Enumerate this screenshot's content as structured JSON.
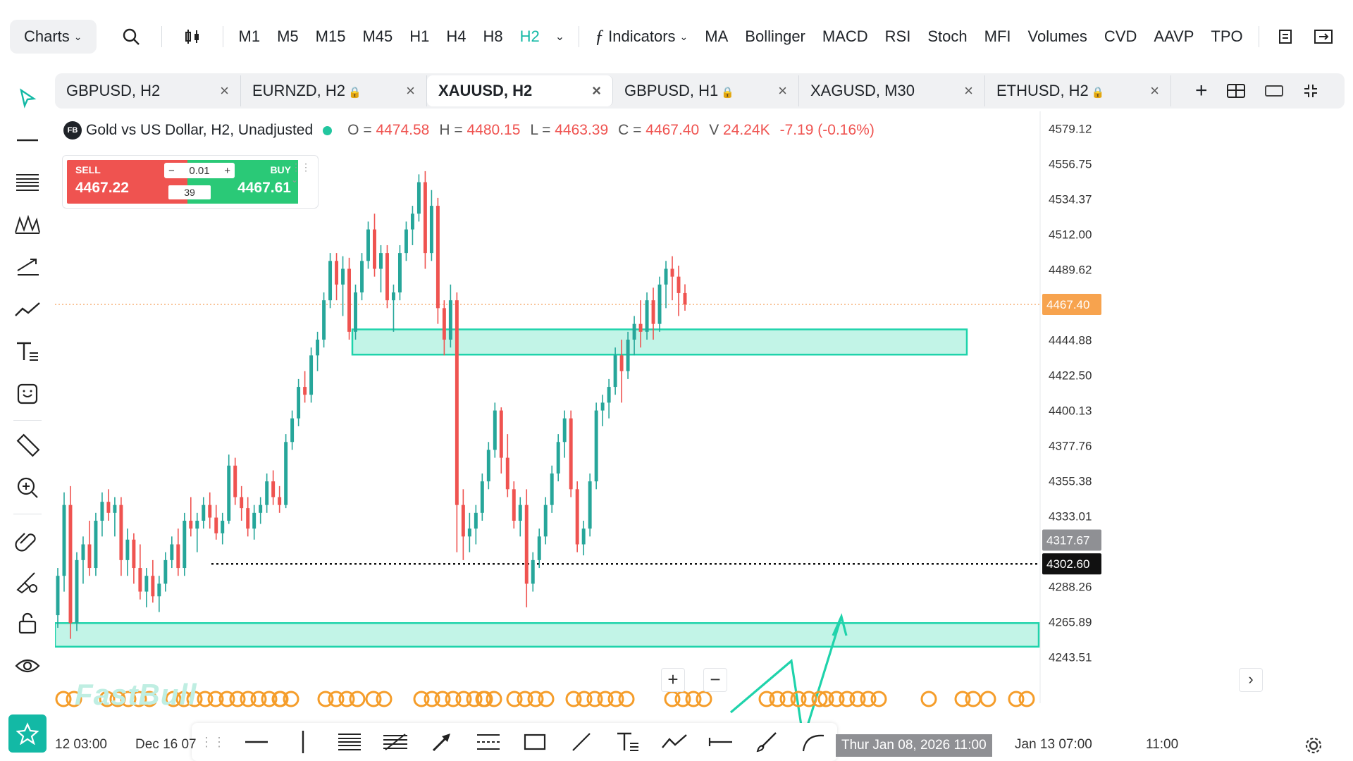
{
  "toolbar": {
    "charts_label": "Charts",
    "timeframes": [
      "M1",
      "M5",
      "M15",
      "M45",
      "H1",
      "H4",
      "H8",
      "H2"
    ],
    "active_timeframe": "H2",
    "indicators_label": "Indicators",
    "indicator_items": [
      "MA",
      "Bollinger",
      "MACD",
      "RSI",
      "Stoch",
      "MFI",
      "Volumes",
      "CVD",
      "AAVP",
      "TPO"
    ]
  },
  "tabs": [
    {
      "label": "GBPUSD, H2",
      "locked": false,
      "active": false
    },
    {
      "label": "EURNZD, H2",
      "locked": true,
      "active": false
    },
    {
      "label": "XAUUSD, H2",
      "locked": false,
      "active": true
    },
    {
      "label": "GBPUSD, H1",
      "locked": true,
      "active": false
    },
    {
      "label": "XAGUSD, M30",
      "locked": false,
      "active": false
    },
    {
      "label": "ETHUSD, H2",
      "locked": true,
      "active": false
    }
  ],
  "legend": {
    "badge": "FB",
    "title": "Gold vs US Dollar, H2, Unadjusted",
    "o_label": "O =",
    "o": "4474.58",
    "h_label": "H =",
    "h": "4480.15",
    "l_label": "L =",
    "l": "4463.39",
    "c_label": "C =",
    "c": "4467.40",
    "v_label": "V",
    "v": "24.24K",
    "change": "-7.19 (-0.16%)"
  },
  "trade": {
    "sell_label": "SELL",
    "sell_price": "4467.22",
    "buy_label": "BUY",
    "buy_price": "4467.61",
    "lot": "0.01",
    "spread": "39",
    "minus": "−",
    "plus": "+"
  },
  "price_axis": [
    "4579.12",
    "4556.75",
    "4534.37",
    "4512.00",
    "4489.62",
    "4467.40",
    "4444.88",
    "4422.50",
    "4400.13",
    "4377.76",
    "4355.38",
    "4333.01",
    "4317.67",
    "4302.60",
    "4288.26",
    "4265.89",
    "4243.51"
  ],
  "price_tags": {
    "last": "4467.40",
    "crosshair_a": "4317.67",
    "crosshair_b": "4302.60"
  },
  "time_axis": {
    "labels": [
      "12 03:00",
      "Dec 16 07",
      "Jan 13 07:00",
      "11:00"
    ],
    "crosshair": "Thur Jan 08, 2026 11:00"
  },
  "watermark": "FastBull",
  "colors": {
    "up": "#26a69a",
    "down": "#ef5350",
    "accent": "#13b9a5",
    "zone_fill": "#b7f2e3",
    "zone_stroke": "#1fd3ab"
  },
  "chart_data": {
    "type": "candlestick",
    "symbol": "XAUUSD",
    "timeframe": "H2",
    "ylim": [
      4232,
      4590
    ],
    "last_price": 4467.4,
    "zones": [
      [
        4435.5,
        4451.5
      ],
      [
        4250,
        4265.0
      ]
    ],
    "support_line": 4302.6,
    "candles": [
      [
        4270,
        4300,
        4262,
        4295
      ],
      [
        4295,
        4348,
        4285,
        4340
      ],
      [
        4340,
        4352,
        4255,
        4265
      ],
      [
        4265,
        4310,
        4260,
        4305
      ],
      [
        4305,
        4320,
        4290,
        4315
      ],
      [
        4315,
        4330,
        4295,
        4300
      ],
      [
        4300,
        4335,
        4295,
        4330
      ],
      [
        4330,
        4348,
        4320,
        4342
      ],
      [
        4342,
        4350,
        4330,
        4335
      ],
      [
        4335,
        4345,
        4320,
        4340
      ],
      [
        4340,
        4345,
        4295,
        4305
      ],
      [
        4305,
        4325,
        4295,
        4318
      ],
      [
        4318,
        4322,
        4290,
        4300
      ],
      [
        4300,
        4315,
        4280,
        4285
      ],
      [
        4285,
        4300,
        4275,
        4295
      ],
      [
        4295,
        4305,
        4278,
        4282
      ],
      [
        4282,
        4295,
        4272,
        4290
      ],
      [
        4290,
        4310,
        4285,
        4305
      ],
      [
        4305,
        4320,
        4300,
        4315
      ],
      [
        4315,
        4325,
        4295,
        4300
      ],
      [
        4300,
        4335,
        4295,
        4330
      ],
      [
        4330,
        4345,
        4320,
        4325
      ],
      [
        4325,
        4335,
        4310,
        4330
      ],
      [
        4330,
        4345,
        4325,
        4340
      ],
      [
        4340,
        4348,
        4325,
        4332
      ],
      [
        4332,
        4340,
        4318,
        4322
      ],
      [
        4322,
        4335,
        4315,
        4330
      ],
      [
        4330,
        4372,
        4328,
        4365
      ],
      [
        4365,
        4370,
        4340,
        4345
      ],
      [
        4345,
        4352,
        4330,
        4338
      ],
      [
        4338,
        4345,
        4320,
        4325
      ],
      [
        4325,
        4340,
        4318,
        4335
      ],
      [
        4335,
        4345,
        4328,
        4340
      ],
      [
        4340,
        4360,
        4335,
        4355
      ],
      [
        4355,
        4362,
        4340,
        4345
      ],
      [
        4345,
        4352,
        4335,
        4340
      ],
      [
        4340,
        4385,
        4338,
        4380
      ],
      [
        4380,
        4400,
        4375,
        4395
      ],
      [
        4395,
        4420,
        4390,
        4415
      ],
      [
        4415,
        4425,
        4405,
        4410
      ],
      [
        4410,
        4440,
        4405,
        4435
      ],
      [
        4435,
        4450,
        4425,
        4445
      ],
      [
        4445,
        4475,
        4440,
        4470
      ],
      [
        4470,
        4500,
        4465,
        4495
      ],
      [
        4495,
        4500,
        4470,
        4480
      ],
      [
        4480,
        4498,
        4460,
        4490
      ],
      [
        4490,
        4497,
        4445,
        4450
      ],
      [
        4450,
        4480,
        4445,
        4475
      ],
      [
        4475,
        4500,
        4470,
        4495
      ],
      [
        4495,
        4520,
        4490,
        4515
      ],
      [
        4515,
        4525,
        4485,
        4490
      ],
      [
        4490,
        4505,
        4475,
        4500
      ],
      [
        4500,
        4505,
        4465,
        4470
      ],
      [
        4470,
        4480,
        4450,
        4475
      ],
      [
        4475,
        4505,
        4470,
        4500
      ],
      [
        4500,
        4520,
        4495,
        4515
      ],
      [
        4515,
        4530,
        4505,
        4525
      ],
      [
        4525,
        4550,
        4520,
        4545
      ],
      [
        4545,
        4552,
        4490,
        4500
      ],
      [
        4500,
        4540,
        4495,
        4530
      ],
      [
        4530,
        4535,
        4455,
        4465
      ],
      [
        4465,
        4470,
        4435,
        4445
      ],
      [
        4445,
        4480,
        4440,
        4470
      ],
      [
        4470,
        4475,
        4310,
        4340
      ],
      [
        4340,
        4350,
        4305,
        4320
      ],
      [
        4320,
        4335,
        4310,
        4325
      ],
      [
        4325,
        4340,
        4315,
        4335
      ],
      [
        4335,
        4360,
        4330,
        4355
      ],
      [
        4355,
        4380,
        4350,
        4375
      ],
      [
        4375,
        4405,
        4370,
        4400
      ],
      [
        4400,
        4402,
        4360,
        4370
      ],
      [
        4370,
        4385,
        4345,
        4350
      ],
      [
        4350,
        4355,
        4325,
        4330
      ],
      [
        4330,
        4345,
        4320,
        4340
      ],
      [
        4340,
        4350,
        4275,
        4290
      ],
      [
        4290,
        4310,
        4285,
        4305
      ],
      [
        4305,
        4325,
        4300,
        4320
      ],
      [
        4320,
        4345,
        4315,
        4340
      ],
      [
        4340,
        4365,
        4335,
        4360
      ],
      [
        4360,
        4385,
        4355,
        4380
      ],
      [
        4380,
        4400,
        4370,
        4395
      ],
      [
        4395,
        4400,
        4345,
        4350
      ],
      [
        4350,
        4355,
        4310,
        4315
      ],
      [
        4315,
        4330,
        4308,
        4325
      ],
      [
        4325,
        4360,
        4320,
        4355
      ],
      [
        4355,
        4405,
        4350,
        4400
      ],
      [
        4400,
        4410,
        4390,
        4405
      ],
      [
        4405,
        4420,
        4395,
        4415
      ],
      [
        4415,
        4440,
        4410,
        4435
      ],
      [
        4435,
        4445,
        4405,
        4425
      ],
      [
        4425,
        4450,
        4420,
        4445
      ],
      [
        4445,
        4460,
        4435,
        4455
      ],
      [
        4455,
        4470,
        4440,
        4450
      ],
      [
        4450,
        4475,
        4445,
        4470
      ],
      [
        4470,
        4478,
        4445,
        4455
      ],
      [
        4455,
        4485,
        4450,
        4480
      ],
      [
        4480,
        4495,
        4465,
        4490
      ],
      [
        4490,
        4498,
        4470,
        4485
      ],
      [
        4485,
        4492,
        4460,
        4474.58
      ],
      [
        4474.58,
        4480.15,
        4463.39,
        4467.4
      ]
    ]
  }
}
